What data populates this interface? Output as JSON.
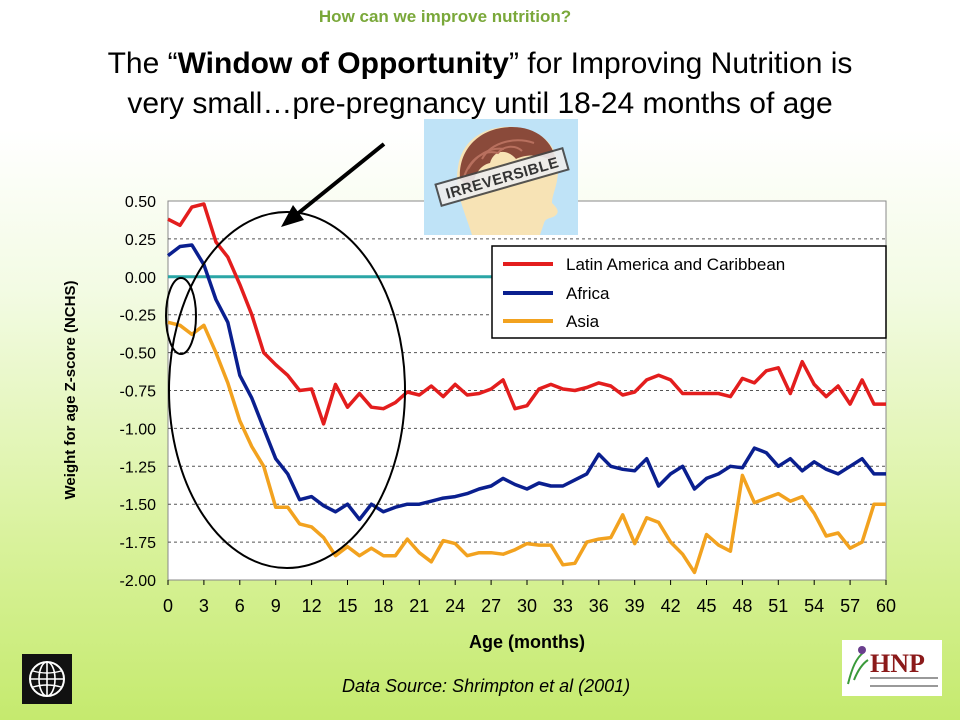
{
  "kicker": "How can we improve nutrition?",
  "headline": {
    "part1": "The “",
    "bold": "Window of Opportunity",
    "part2": "” for Improving Nutrition is",
    "line2": "very small…pre-pregnancy until 18-24 months of age"
  },
  "stamp_text": "IRREVERSIBLE",
  "source": "Data Source: Shrimpton  et al (2001)",
  "chart_data": {
    "type": "line",
    "xlabel": "Age (months)",
    "ylabel": "Weight for age Z-score (NCHS)",
    "xlim": [
      0,
      60
    ],
    "ylim": [
      -2.0,
      0.5
    ],
    "x_ticks": [
      0,
      3,
      6,
      9,
      12,
      15,
      18,
      21,
      24,
      27,
      30,
      33,
      36,
      39,
      42,
      45,
      48,
      51,
      54,
      57,
      60
    ],
    "y_ticks": [
      0.5,
      0.25,
      0.0,
      -0.25,
      -0.5,
      -0.75,
      -1.0,
      -1.25,
      -1.5,
      -1.75,
      -2.0
    ],
    "y_tick_labels": [
      "0.50",
      "0.25",
      "0.00",
      "-0.25",
      "-0.50",
      "-0.75",
      "-1.00",
      "-1.25",
      "-1.50",
      "-1.75",
      "-2.00"
    ],
    "grid": "horizontal dashed",
    "legend_position": "top-right",
    "series": [
      {
        "name": "Latin America and Caribbean",
        "color": "#e31d1d",
        "x": [
          0,
          1,
          2,
          3,
          4,
          5,
          6,
          7,
          8,
          9,
          10,
          11,
          12,
          13,
          14,
          15,
          16,
          17,
          18,
          19,
          20,
          21,
          22,
          23,
          24,
          25,
          26,
          27,
          28,
          29,
          30,
          31,
          32,
          33,
          34,
          35,
          36,
          37,
          38,
          39,
          40,
          41,
          42,
          43,
          44,
          45,
          46,
          47,
          48,
          49,
          50,
          51,
          52,
          53,
          54,
          55,
          56,
          57,
          58,
          59,
          60
        ],
        "values": [
          0.38,
          0.34,
          0.46,
          0.48,
          0.23,
          0.13,
          -0.05,
          -0.25,
          -0.5,
          -0.58,
          -0.65,
          -0.75,
          -0.74,
          -0.97,
          -0.71,
          -0.86,
          -0.77,
          -0.86,
          -0.87,
          -0.83,
          -0.76,
          -0.78,
          -0.72,
          -0.79,
          -0.71,
          -0.78,
          -0.77,
          -0.74,
          -0.68,
          -0.87,
          -0.85,
          -0.74,
          -0.71,
          -0.74,
          -0.75,
          -0.73,
          -0.7,
          -0.72,
          -0.78,
          -0.76,
          -0.68,
          -0.65,
          -0.68,
          -0.77,
          -0.77,
          -0.77,
          -0.77,
          -0.79,
          -0.67,
          -0.7,
          -0.62,
          -0.6,
          -0.77,
          -0.56,
          -0.71,
          -0.79,
          -0.72,
          -0.84,
          -0.68,
          -0.84,
          -0.84
        ]
      },
      {
        "name": "Africa",
        "color": "#0a1f8f",
        "x": [
          0,
          1,
          2,
          3,
          4,
          5,
          6,
          7,
          8,
          9,
          10,
          11,
          12,
          13,
          14,
          15,
          16,
          17,
          18,
          19,
          20,
          21,
          22,
          23,
          24,
          25,
          26,
          27,
          28,
          29,
          30,
          31,
          32,
          33,
          34,
          35,
          36,
          37,
          38,
          39,
          40,
          41,
          42,
          43,
          44,
          45,
          46,
          47,
          48,
          49,
          50,
          51,
          52,
          53,
          54,
          55,
          56,
          57,
          58,
          59,
          60
        ],
        "values": [
          0.14,
          0.2,
          0.21,
          0.08,
          -0.15,
          -0.3,
          -0.65,
          -0.8,
          -1.0,
          -1.2,
          -1.3,
          -1.47,
          -1.45,
          -1.51,
          -1.55,
          -1.5,
          -1.6,
          -1.5,
          -1.55,
          -1.52,
          -1.5,
          -1.5,
          -1.48,
          -1.46,
          -1.45,
          -1.43,
          -1.4,
          -1.38,
          -1.33,
          -1.37,
          -1.4,
          -1.36,
          -1.38,
          -1.38,
          -1.34,
          -1.3,
          -1.17,
          -1.25,
          -1.27,
          -1.28,
          -1.2,
          -1.38,
          -1.3,
          -1.25,
          -1.4,
          -1.33,
          -1.3,
          -1.25,
          -1.26,
          -1.13,
          -1.16,
          -1.25,
          -1.2,
          -1.28,
          -1.22,
          -1.27,
          -1.3,
          -1.25,
          -1.2,
          -1.3,
          -1.3
        ]
      },
      {
        "name": "Asia",
        "color": "#f2a21f",
        "x": [
          0,
          1,
          2,
          3,
          4,
          5,
          6,
          7,
          8,
          9,
          10,
          11,
          12,
          13,
          14,
          15,
          16,
          17,
          18,
          19,
          20,
          21,
          22,
          23,
          24,
          25,
          26,
          27,
          28,
          29,
          30,
          31,
          32,
          33,
          34,
          35,
          36,
          37,
          38,
          39,
          40,
          41,
          42,
          43,
          44,
          45,
          46,
          47,
          48,
          49,
          50,
          51,
          52,
          53,
          54,
          55,
          56,
          57,
          58,
          59,
          60
        ],
        "values": [
          -0.3,
          -0.32,
          -0.38,
          -0.32,
          -0.5,
          -0.7,
          -0.95,
          -1.12,
          -1.25,
          -1.52,
          -1.52,
          -1.63,
          -1.65,
          -1.72,
          -1.84,
          -1.78,
          -1.84,
          -1.79,
          -1.84,
          -1.84,
          -1.73,
          -1.82,
          -1.88,
          -1.74,
          -1.76,
          -1.84,
          -1.82,
          -1.82,
          -1.83,
          -1.8,
          -1.76,
          -1.77,
          -1.77,
          -1.9,
          -1.89,
          -1.75,
          -1.73,
          -1.72,
          -1.57,
          -1.76,
          -1.59,
          -1.62,
          -1.75,
          -1.83,
          -1.95,
          -1.7,
          -1.77,
          -1.81,
          -1.31,
          -1.49,
          -1.46,
          -1.43,
          -1.48,
          -1.45,
          -1.56,
          -1.71,
          -1.69,
          -1.79,
          -1.75,
          -1.5,
          -1.5
        ]
      }
    ]
  }
}
